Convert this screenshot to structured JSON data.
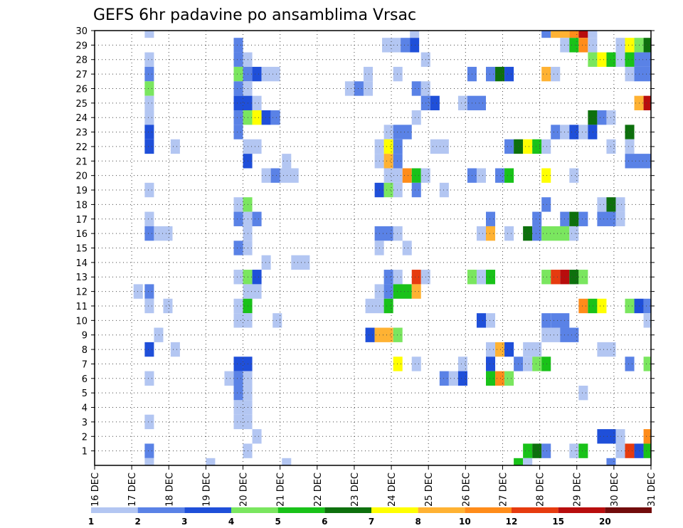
{
  "chart_data": {
    "type": "heatmap",
    "title": "GEFS 6hr padavine po ansamblima Vrsac",
    "xlabel": "",
    "ylabel": "",
    "x_ticks": [
      "16 DEC",
      "17 DEC",
      "18 DEC",
      "19 DEC",
      "20 DEC",
      "21 DEC",
      "22 DEC",
      "23 DEC",
      "24 DEC",
      "25 DEC",
      "26 DEC",
      "27 DEC",
      "28 DEC",
      "29 DEC",
      "30 DEC",
      "31 DEC"
    ],
    "y_ticks": [
      1,
      2,
      3,
      4,
      5,
      6,
      7,
      8,
      9,
      10,
      11,
      12,
      13,
      14,
      15,
      16,
      17,
      18,
      19,
      20,
      21,
      22,
      23,
      24,
      25,
      26,
      27,
      28,
      29,
      30
    ],
    "x_range_days": [
      0,
      15
    ],
    "y_range": [
      0,
      30
    ],
    "x_step_hours": 6,
    "grid": true,
    "legend_placement": "bottom",
    "legend": {
      "labels": [
        "1",
        "2",
        "3",
        "4",
        "5",
        "6",
        "7",
        "8",
        "10",
        "12",
        "15",
        "20"
      ],
      "colors": [
        "#b3c6f2",
        "#5a82e6",
        "#1f4fd9",
        "#7ae65f",
        "#19c219",
        "#0d700d",
        "#ffff00",
        "#ffb233",
        "#ff8c1a",
        "#e63b0f",
        "#b80d0d",
        "#720c0c"
      ]
    },
    "cells_note": "each cell = [member, start_day_offset, span_days, color_class (1..12)]",
    "cells": [
      [
        30,
        1.35,
        0.25,
        1
      ],
      [
        30,
        8.5,
        0.25,
        1
      ],
      [
        30,
        12.05,
        0.25,
        2
      ],
      [
        30,
        12.3,
        0.5,
        8
      ],
      [
        30,
        12.8,
        0.25,
        9
      ],
      [
        30,
        13.05,
        0.25,
        11
      ],
      [
        30,
        13.3,
        0.25,
        1
      ],
      [
        29,
        3.75,
        0.25,
        2
      ],
      [
        29,
        7.75,
        0.5,
        1
      ],
      [
        29,
        8.25,
        0.25,
        2
      ],
      [
        29,
        8.5,
        0.25,
        3
      ],
      [
        29,
        12.55,
        0.25,
        1
      ],
      [
        29,
        12.8,
        0.25,
        5
      ],
      [
        29,
        13.05,
        0.25,
        9
      ],
      [
        29,
        13.3,
        0.25,
        1
      ],
      [
        29,
        14.05,
        0.25,
        1
      ],
      [
        29,
        14.3,
        0.25,
        7
      ],
      [
        29,
        14.55,
        0.25,
        4
      ],
      [
        29,
        14.8,
        0.2,
        6
      ],
      [
        28,
        1.35,
        0.25,
        1
      ],
      [
        28,
        3.75,
        0.25,
        2
      ],
      [
        28,
        4.0,
        0.25,
        1
      ],
      [
        28,
        8.8,
        0.25,
        1
      ],
      [
        28,
        13.3,
        0.25,
        4
      ],
      [
        28,
        13.55,
        0.25,
        7
      ],
      [
        28,
        13.8,
        0.25,
        5
      ],
      [
        28,
        14.05,
        0.25,
        1
      ],
      [
        28,
        14.3,
        0.25,
        5
      ],
      [
        28,
        14.55,
        0.45,
        2
      ],
      [
        27,
        1.35,
        0.25,
        2
      ],
      [
        27,
        3.75,
        0.25,
        4
      ],
      [
        27,
        4.0,
        0.25,
        2
      ],
      [
        27,
        4.25,
        0.25,
        3
      ],
      [
        27,
        4.5,
        0.5,
        1
      ],
      [
        27,
        7.25,
        0.25,
        1
      ],
      [
        27,
        8.05,
        0.25,
        1
      ],
      [
        27,
        10.05,
        0.25,
        2
      ],
      [
        27,
        10.55,
        0.25,
        2
      ],
      [
        27,
        10.8,
        0.25,
        6
      ],
      [
        27,
        11.05,
        0.25,
        3
      ],
      [
        27,
        12.05,
        0.25,
        8
      ],
      [
        27,
        12.3,
        0.25,
        1
      ],
      [
        27,
        14.3,
        0.25,
        1
      ],
      [
        27,
        14.55,
        0.45,
        2
      ],
      [
        26,
        1.35,
        0.25,
        4
      ],
      [
        26,
        3.75,
        0.25,
        2
      ],
      [
        26,
        4.0,
        0.25,
        1
      ],
      [
        26,
        6.75,
        0.25,
        1
      ],
      [
        26,
        7.0,
        0.25,
        2
      ],
      [
        26,
        7.25,
        0.25,
        1
      ],
      [
        26,
        8.55,
        0.25,
        2
      ],
      [
        26,
        8.8,
        0.25,
        1
      ],
      [
        25,
        1.35,
        0.25,
        1
      ],
      [
        25,
        3.75,
        0.5,
        3
      ],
      [
        25,
        4.25,
        0.25,
        1
      ],
      [
        25,
        8.8,
        0.25,
        2
      ],
      [
        25,
        9.05,
        0.25,
        3
      ],
      [
        25,
        9.8,
        0.25,
        1
      ],
      [
        25,
        10.05,
        0.5,
        2
      ],
      [
        25,
        14.55,
        0.25,
        8
      ],
      [
        25,
        14.8,
        0.2,
        11
      ],
      [
        24,
        1.35,
        0.25,
        1
      ],
      [
        24,
        3.75,
        0.25,
        2
      ],
      [
        24,
        4.0,
        0.25,
        4
      ],
      [
        24,
        4.25,
        0.25,
        7
      ],
      [
        24,
        4.5,
        0.25,
        3
      ],
      [
        24,
        4.75,
        0.25,
        2
      ],
      [
        24,
        8.55,
        0.25,
        1
      ],
      [
        24,
        13.3,
        0.25,
        6
      ],
      [
        24,
        13.55,
        0.25,
        2
      ],
      [
        24,
        13.8,
        0.25,
        1
      ],
      [
        23,
        1.35,
        0.25,
        3
      ],
      [
        23,
        3.75,
        0.25,
        2
      ],
      [
        23,
        7.8,
        0.25,
        1
      ],
      [
        23,
        8.05,
        0.5,
        2
      ],
      [
        23,
        12.3,
        0.25,
        2
      ],
      [
        23,
        12.55,
        0.25,
        1
      ],
      [
        23,
        12.8,
        0.25,
        3
      ],
      [
        23,
        13.05,
        0.25,
        1
      ],
      [
        23,
        13.3,
        0.25,
        3
      ],
      [
        23,
        14.3,
        0.25,
        6
      ],
      [
        22,
        1.35,
        0.25,
        3
      ],
      [
        22,
        2.05,
        0.25,
        1
      ],
      [
        22,
        4.0,
        0.5,
        1
      ],
      [
        22,
        7.55,
        0.25,
        1
      ],
      [
        22,
        7.8,
        0.25,
        7
      ],
      [
        22,
        8.05,
        0.25,
        2
      ],
      [
        22,
        9.05,
        0.5,
        1
      ],
      [
        22,
        11.05,
        0.25,
        2
      ],
      [
        22,
        11.3,
        0.25,
        6
      ],
      [
        22,
        11.55,
        0.25,
        7
      ],
      [
        22,
        11.8,
        0.25,
        5
      ],
      [
        22,
        12.05,
        0.25,
        1
      ],
      [
        22,
        13.8,
        0.25,
        1
      ],
      [
        22,
        14.3,
        0.25,
        1
      ],
      [
        21,
        4.0,
        0.25,
        3
      ],
      [
        21,
        5.05,
        0.25,
        1
      ],
      [
        21,
        7.55,
        0.25,
        1
      ],
      [
        21,
        7.8,
        0.25,
        8
      ],
      [
        21,
        8.05,
        0.25,
        2
      ],
      [
        21,
        14.3,
        0.75,
        2
      ],
      [
        20,
        4.5,
        0.25,
        1
      ],
      [
        20,
        4.75,
        0.25,
        2
      ],
      [
        20,
        5.0,
        0.5,
        1
      ],
      [
        20,
        7.8,
        0.5,
        1
      ],
      [
        20,
        8.3,
        0.25,
        9
      ],
      [
        20,
        8.55,
        0.25,
        5
      ],
      [
        20,
        8.8,
        0.25,
        1
      ],
      [
        20,
        10.05,
        0.25,
        2
      ],
      [
        20,
        10.3,
        0.25,
        1
      ],
      [
        20,
        10.8,
        0.25,
        2
      ],
      [
        20,
        11.05,
        0.25,
        5
      ],
      [
        20,
        12.05,
        0.25,
        7
      ],
      [
        20,
        12.8,
        0.25,
        1
      ],
      [
        19,
        1.35,
        0.25,
        1
      ],
      [
        19,
        7.55,
        0.25,
        3
      ],
      [
        19,
        7.8,
        0.25,
        4
      ],
      [
        19,
        8.05,
        0.25,
        1
      ],
      [
        19,
        8.55,
        0.25,
        2
      ],
      [
        19,
        9.3,
        0.25,
        1
      ],
      [
        18,
        3.75,
        0.25,
        1
      ],
      [
        18,
        4.0,
        0.25,
        4
      ],
      [
        18,
        12.05,
        0.25,
        2
      ],
      [
        18,
        13.55,
        0.25,
        1
      ],
      [
        18,
        13.8,
        0.25,
        6
      ],
      [
        18,
        14.05,
        0.25,
        1
      ],
      [
        17,
        1.35,
        0.25,
        1
      ],
      [
        17,
        3.75,
        0.25,
        2
      ],
      [
        17,
        4.0,
        0.25,
        1
      ],
      [
        17,
        4.25,
        0.25,
        2
      ],
      [
        17,
        10.55,
        0.25,
        2
      ],
      [
        17,
        11.8,
        0.25,
        2
      ],
      [
        17,
        12.55,
        0.25,
        2
      ],
      [
        17,
        12.8,
        0.25,
        6
      ],
      [
        17,
        13.05,
        0.25,
        2
      ],
      [
        17,
        13.55,
        0.5,
        2
      ],
      [
        17,
        14.05,
        0.25,
        1
      ],
      [
        16,
        1.35,
        0.25,
        2
      ],
      [
        16,
        1.6,
        0.5,
        1
      ],
      [
        16,
        4.0,
        0.25,
        1
      ],
      [
        16,
        7.55,
        0.5,
        2
      ],
      [
        16,
        8.05,
        0.25,
        1
      ],
      [
        16,
        10.3,
        0.25,
        1
      ],
      [
        16,
        10.55,
        0.25,
        8
      ],
      [
        16,
        11.05,
        0.25,
        1
      ],
      [
        16,
        11.55,
        0.25,
        6
      ],
      [
        16,
        11.8,
        0.25,
        2
      ],
      [
        16,
        12.05,
        0.75,
        4
      ],
      [
        16,
        12.8,
        0.25,
        1
      ],
      [
        15,
        3.75,
        0.25,
        2
      ],
      [
        15,
        4.0,
        0.25,
        1
      ],
      [
        15,
        7.55,
        0.25,
        1
      ],
      [
        15,
        8.3,
        0.25,
        1
      ],
      [
        14,
        4.5,
        0.25,
        1
      ],
      [
        14,
        5.3,
        0.5,
        1
      ],
      [
        13,
        3.75,
        0.25,
        1
      ],
      [
        13,
        4.0,
        0.25,
        4
      ],
      [
        13,
        4.25,
        0.25,
        3
      ],
      [
        13,
        7.8,
        0.25,
        2
      ],
      [
        13,
        8.05,
        0.25,
        1
      ],
      [
        13,
        8.55,
        0.25,
        10
      ],
      [
        13,
        8.8,
        0.25,
        1
      ],
      [
        13,
        10.05,
        0.25,
        4
      ],
      [
        13,
        10.3,
        0.25,
        1
      ],
      [
        13,
        10.55,
        0.25,
        5
      ],
      [
        13,
        12.05,
        0.25,
        4
      ],
      [
        13,
        12.3,
        0.25,
        10
      ],
      [
        13,
        12.55,
        0.25,
        11
      ],
      [
        13,
        12.8,
        0.25,
        6
      ],
      [
        13,
        13.05,
        0.25,
        4
      ],
      [
        12,
        1.05,
        0.25,
        1
      ],
      [
        12,
        1.35,
        0.25,
        2
      ],
      [
        12,
        4.0,
        0.5,
        1
      ],
      [
        12,
        7.55,
        0.25,
        1
      ],
      [
        12,
        7.8,
        0.25,
        2
      ],
      [
        12,
        8.05,
        0.5,
        5
      ],
      [
        12,
        8.55,
        0.25,
        8
      ],
      [
        11,
        1.35,
        0.25,
        1
      ],
      [
        11,
        1.85,
        0.25,
        1
      ],
      [
        11,
        3.75,
        0.25,
        1
      ],
      [
        11,
        4.0,
        0.25,
        5
      ],
      [
        11,
        7.3,
        0.5,
        1
      ],
      [
        11,
        7.8,
        0.25,
        5
      ],
      [
        11,
        13.05,
        0.25,
        9
      ],
      [
        11,
        13.3,
        0.25,
        5
      ],
      [
        11,
        13.55,
        0.25,
        7
      ],
      [
        11,
        14.3,
        0.25,
        4
      ],
      [
        11,
        14.55,
        0.25,
        3
      ],
      [
        11,
        14.8,
        0.2,
        2
      ],
      [
        10,
        3.75,
        0.5,
        1
      ],
      [
        10,
        4.8,
        0.25,
        1
      ],
      [
        10,
        10.3,
        0.25,
        3
      ],
      [
        10,
        10.55,
        0.25,
        1
      ],
      [
        10,
        12.05,
        0.25,
        2
      ],
      [
        10,
        12.3,
        0.5,
        2
      ],
      [
        10,
        14.8,
        0.2,
        1
      ],
      [
        9,
        1.6,
        0.25,
        1
      ],
      [
        9,
        7.3,
        0.25,
        3
      ],
      [
        9,
        7.55,
        0.5,
        8
      ],
      [
        9,
        8.05,
        0.25,
        4
      ],
      [
        9,
        12.05,
        0.5,
        1
      ],
      [
        9,
        12.55,
        0.5,
        2
      ],
      [
        8,
        1.35,
        0.25,
        3
      ],
      [
        8,
        2.05,
        0.25,
        1
      ],
      [
        8,
        10.55,
        0.25,
        1
      ],
      [
        8,
        10.8,
        0.25,
        8
      ],
      [
        8,
        11.05,
        0.25,
        3
      ],
      [
        8,
        11.55,
        0.5,
        1
      ],
      [
        8,
        13.55,
        0.5,
        1
      ],
      [
        7,
        3.75,
        0.25,
        3
      ],
      [
        7,
        4.0,
        0.25,
        3
      ],
      [
        7,
        8.05,
        0.25,
        7
      ],
      [
        7,
        8.55,
        0.25,
        1
      ],
      [
        7,
        9.8,
        0.25,
        1
      ],
      [
        7,
        10.55,
        0.25,
        3
      ],
      [
        7,
        11.3,
        0.25,
        2
      ],
      [
        7,
        11.55,
        0.25,
        1
      ],
      [
        7,
        11.8,
        0.25,
        4
      ],
      [
        7,
        12.05,
        0.25,
        5
      ],
      [
        7,
        14.3,
        0.25,
        2
      ],
      [
        7,
        14.8,
        0.2,
        4
      ],
      [
        6,
        1.35,
        0.25,
        1
      ],
      [
        6,
        3.5,
        0.5,
        1
      ],
      [
        6,
        3.75,
        0.25,
        2
      ],
      [
        6,
        4.0,
        0.25,
        1
      ],
      [
        6,
        9.3,
        0.25,
        2
      ],
      [
        6,
        9.55,
        0.25,
        1
      ],
      [
        6,
        9.8,
        0.25,
        3
      ],
      [
        6,
        10.55,
        0.25,
        5
      ],
      [
        6,
        10.8,
        0.25,
        9
      ],
      [
        6,
        11.05,
        0.25,
        4
      ],
      [
        5,
        3.75,
        0.25,
        2
      ],
      [
        5,
        4.0,
        0.25,
        1
      ],
      [
        5,
        13.05,
        0.25,
        1
      ],
      [
        4,
        3.75,
        0.25,
        1
      ],
      [
        4,
        4.0,
        0.25,
        1
      ],
      [
        3,
        1.35,
        0.25,
        1
      ],
      [
        3,
        3.75,
        0.25,
        1
      ],
      [
        3,
        4.0,
        0.25,
        1
      ],
      [
        2,
        4.25,
        0.25,
        1
      ],
      [
        2,
        13.55,
        0.5,
        3
      ],
      [
        2,
        14.05,
        0.25,
        1
      ],
      [
        2,
        14.8,
        0.2,
        9
      ],
      [
        1,
        1.35,
        0.25,
        2
      ],
      [
        1,
        4.0,
        0.25,
        1
      ],
      [
        1,
        11.55,
        0.25,
        5
      ],
      [
        1,
        11.8,
        0.25,
        6
      ],
      [
        1,
        12.05,
        0.25,
        2
      ],
      [
        1,
        12.8,
        0.25,
        1
      ],
      [
        1,
        13.05,
        0.25,
        5
      ],
      [
        1,
        14.05,
        0.25,
        1
      ],
      [
        1,
        14.3,
        0.25,
        10
      ],
      [
        1,
        14.55,
        0.25,
        3
      ],
      [
        1,
        14.8,
        0.2,
        5
      ],
      [
        0,
        1.35,
        0.25,
        1
      ],
      [
        0,
        3.0,
        0.25,
        1
      ],
      [
        0,
        5.05,
        0.25,
        1
      ],
      [
        0,
        11.3,
        0.25,
        5
      ],
      [
        0,
        11.55,
        0.25,
        1
      ],
      [
        0,
        13.8,
        0.25,
        2
      ]
    ]
  }
}
